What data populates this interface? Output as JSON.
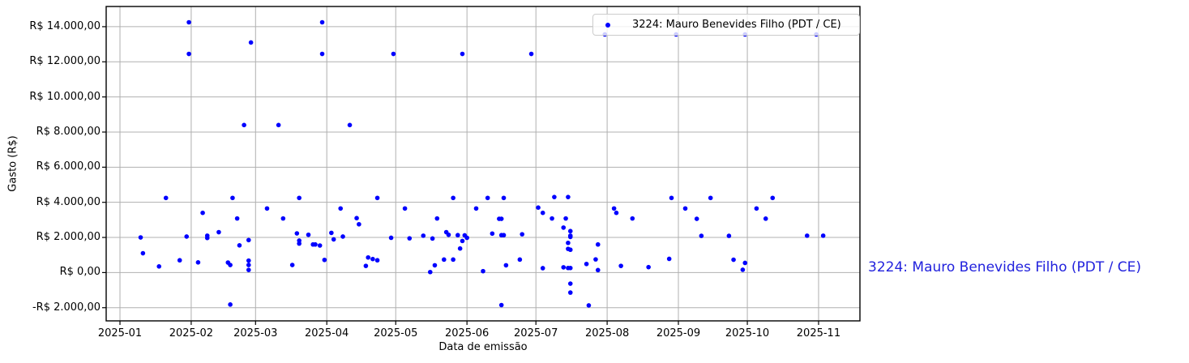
{
  "legend": {
    "label": "3224: Mauro Benevides Filho (PDT / CE)",
    "marker_color": "#0000ff"
  },
  "outer_legend": {
    "label": "3224: Mauro Benevides Filho (PDT / CE)",
    "color": "#2222dd"
  },
  "chart_data": {
    "type": "scatter",
    "title": "",
    "xlabel": "Data de emissão",
    "ylabel": "Gasto (R$)",
    "grid": true,
    "grid_color": "#b0b0b0",
    "frame_color": "#000000",
    "legend_position": "upper right",
    "ylim": [
      -2750,
      15150
    ],
    "xlim_days": [
      -6,
      322
    ],
    "y_ticks": [
      {
        "value": 14000,
        "label": "R$ 14.000,00"
      },
      {
        "value": 12000,
        "label": "R$ 12.000,00"
      },
      {
        "value": 10000,
        "label": "R$ 10.000,00"
      },
      {
        "value": 8000,
        "label": "R$ 8.000,00"
      },
      {
        "value": 6000,
        "label": "R$ 6.000,00"
      },
      {
        "value": 4000,
        "label": "R$ 4.000,00"
      },
      {
        "value": 2000,
        "label": "R$ 2.000,00"
      },
      {
        "value": 0,
        "label": "R$ 0,00"
      },
      {
        "value": -2000,
        "label": "-R$ 2.000,00"
      }
    ],
    "x_ticks": [
      {
        "day": 0,
        "label": "2025-01"
      },
      {
        "day": 31,
        "label": "2025-02"
      },
      {
        "day": 59,
        "label": "2025-03"
      },
      {
        "day": 90,
        "label": "2025-04"
      },
      {
        "day": 120,
        "label": "2025-05"
      },
      {
        "day": 151,
        "label": "2025-06"
      },
      {
        "day": 181,
        "label": "2025-07"
      },
      {
        "day": 212,
        "label": "2025-08"
      },
      {
        "day": 243,
        "label": "2025-09"
      },
      {
        "day": 273,
        "label": "2025-10"
      },
      {
        "day": 304,
        "label": "2025-11"
      }
    ],
    "series": [
      {
        "name": "3224: Mauro Benevides Filho (PDT / CE)",
        "color": "#0000ff",
        "points": [
          [
            "2025-01-10",
            2000
          ],
          [
            "2025-01-11",
            1100
          ],
          [
            "2025-01-18",
            350
          ],
          [
            "2025-01-21",
            4250
          ],
          [
            "2025-01-27",
            700
          ],
          [
            "2025-01-30",
            2050
          ],
          [
            "2025-01-31",
            14250
          ],
          [
            "2025-01-31",
            12450
          ],
          [
            "2025-02-04",
            580
          ],
          [
            "2025-02-06",
            3400
          ],
          [
            "2025-02-08",
            2100
          ],
          [
            "2025-02-08",
            1970
          ],
          [
            "2025-02-13",
            2300
          ],
          [
            "2025-02-17",
            570
          ],
          [
            "2025-02-18",
            430
          ],
          [
            "2025-02-18",
            -1820
          ],
          [
            "2025-02-19",
            4250
          ],
          [
            "2025-02-21",
            3080
          ],
          [
            "2025-02-22",
            1550
          ],
          [
            "2025-02-24",
            8400
          ],
          [
            "2025-02-26",
            1850
          ],
          [
            "2025-02-26",
            680
          ],
          [
            "2025-02-26",
            430
          ],
          [
            "2025-02-26",
            150
          ],
          [
            "2025-02-27",
            13100
          ],
          [
            "2025-03-06",
            3650
          ],
          [
            "2025-03-11",
            8400
          ],
          [
            "2025-03-13",
            3080
          ],
          [
            "2025-03-17",
            430
          ],
          [
            "2025-03-19",
            2230
          ],
          [
            "2025-03-20",
            4250
          ],
          [
            "2025-03-20",
            1820
          ],
          [
            "2025-03-20",
            1650
          ],
          [
            "2025-03-24",
            2150
          ],
          [
            "2025-03-26",
            1600
          ],
          [
            "2025-03-27",
            1600
          ],
          [
            "2025-03-29",
            1540
          ],
          [
            "2025-03-30",
            14250
          ],
          [
            "2025-03-30",
            12450
          ],
          [
            "2025-03-31",
            720
          ],
          [
            "2025-04-03",
            2260
          ],
          [
            "2025-04-04",
            1890
          ],
          [
            "2025-04-07",
            3650
          ],
          [
            "2025-04-08",
            2050
          ],
          [
            "2025-04-11",
            8400
          ],
          [
            "2025-04-14",
            3100
          ],
          [
            "2025-04-15",
            2750
          ],
          [
            "2025-04-18",
            380
          ],
          [
            "2025-04-19",
            860
          ],
          [
            "2025-04-21",
            770
          ],
          [
            "2025-04-23",
            700
          ],
          [
            "2025-04-23",
            4250
          ],
          [
            "2025-04-29",
            1980
          ],
          [
            "2025-04-30",
            12450
          ],
          [
            "2025-05-05",
            3650
          ],
          [
            "2025-05-07",
            1950
          ],
          [
            "2025-05-13",
            2100
          ],
          [
            "2025-05-16",
            30
          ],
          [
            "2025-05-17",
            1940
          ],
          [
            "2025-05-18",
            415
          ],
          [
            "2025-05-19",
            3080
          ],
          [
            "2025-05-22",
            740
          ],
          [
            "2025-05-23",
            2300
          ],
          [
            "2025-05-24",
            2150
          ],
          [
            "2025-05-26",
            740
          ],
          [
            "2025-05-26",
            4250
          ],
          [
            "2025-05-28",
            2130
          ],
          [
            "2025-05-29",
            1370
          ],
          [
            "2025-05-30",
            1800
          ],
          [
            "2025-05-30",
            12450
          ],
          [
            "2025-05-31",
            2120
          ],
          [
            "2025-06-01",
            1980
          ],
          [
            "2025-06-05",
            3650
          ],
          [
            "2025-06-08",
            80
          ],
          [
            "2025-06-10",
            4250
          ],
          [
            "2025-06-12",
            2220
          ],
          [
            "2025-06-15",
            3060
          ],
          [
            "2025-06-16",
            3060
          ],
          [
            "2025-06-16",
            2130
          ],
          [
            "2025-06-16",
            -1850
          ],
          [
            "2025-06-17",
            2130
          ],
          [
            "2025-06-17",
            4250
          ],
          [
            "2025-06-18",
            415
          ],
          [
            "2025-06-24",
            740
          ],
          [
            "2025-06-25",
            2180
          ],
          [
            "2025-06-29",
            12450
          ],
          [
            "2025-07-02",
            3700
          ],
          [
            "2025-07-04",
            3400
          ],
          [
            "2025-07-04",
            250
          ],
          [
            "2025-07-08",
            3080
          ],
          [
            "2025-07-09",
            4300
          ],
          [
            "2025-07-13",
            2560
          ],
          [
            "2025-07-13",
            300
          ],
          [
            "2025-07-14",
            3080
          ],
          [
            "2025-07-15",
            4300
          ],
          [
            "2025-07-15",
            1690
          ],
          [
            "2025-07-15",
            1350
          ],
          [
            "2025-07-15",
            260
          ],
          [
            "2025-07-16",
            2360
          ],
          [
            "2025-07-16",
            2100
          ],
          [
            "2025-07-16",
            2030
          ],
          [
            "2025-07-16",
            1300
          ],
          [
            "2025-07-16",
            260
          ],
          [
            "2025-07-16",
            -630
          ],
          [
            "2025-07-16",
            -1140
          ],
          [
            "2025-07-23",
            490
          ],
          [
            "2025-07-24",
            -1870
          ],
          [
            "2025-07-27",
            750
          ],
          [
            "2025-07-28",
            1600
          ],
          [
            "2025-07-28",
            140
          ],
          [
            "2025-07-31",
            13560
          ],
          [
            "2025-08-04",
            3650
          ],
          [
            "2025-08-05",
            3400
          ],
          [
            "2025-08-07",
            380
          ],
          [
            "2025-08-12",
            3080
          ],
          [
            "2025-08-19",
            310
          ],
          [
            "2025-08-28",
            780
          ],
          [
            "2025-08-29",
            4250
          ],
          [
            "2025-08-31",
            13560
          ],
          [
            "2025-09-04",
            3650
          ],
          [
            "2025-09-09",
            3060
          ],
          [
            "2025-09-11",
            2090
          ],
          [
            "2025-09-15",
            4250
          ],
          [
            "2025-09-23",
            2090
          ],
          [
            "2025-09-25",
            730
          ],
          [
            "2025-09-29",
            160
          ],
          [
            "2025-09-30",
            550
          ],
          [
            "2025-09-30",
            13560
          ],
          [
            "2025-10-05",
            3650
          ],
          [
            "2025-10-09",
            3070
          ],
          [
            "2025-10-12",
            4250
          ],
          [
            "2025-10-27",
            2100
          ],
          [
            "2025-10-31",
            13560
          ],
          [
            "2025-11-03",
            2100
          ]
        ]
      }
    ]
  }
}
